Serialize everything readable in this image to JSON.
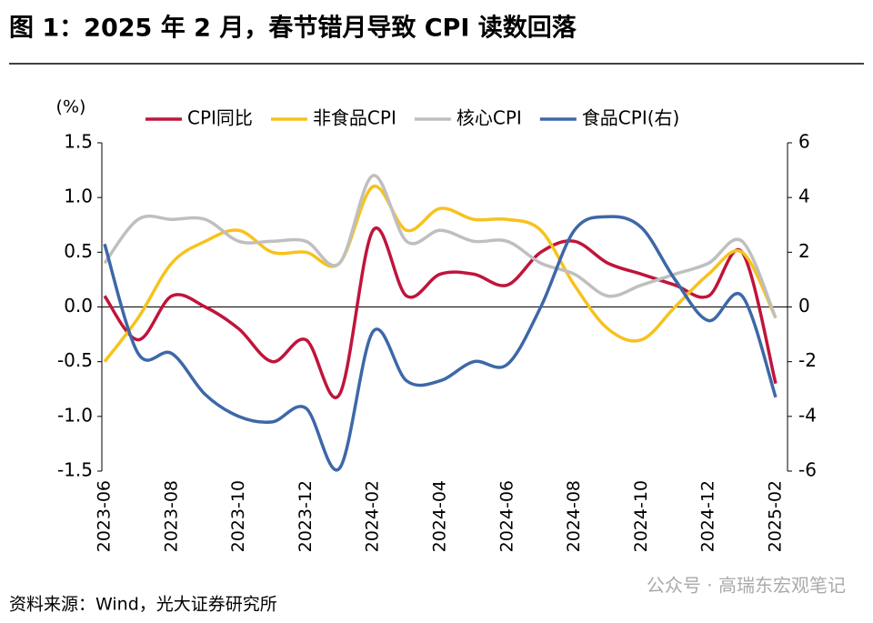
{
  "chart_data": {
    "type": "line",
    "title": "图 1：2025 年 2 月，春节错月导致 CPI 读数回落",
    "y_label": "(%)",
    "source": "资料来源：Wind，光大证券研究所",
    "watermark": "公众号 · 高瑞东宏观笔记",
    "categories": [
      "2023-06",
      null,
      "2023-08",
      null,
      "2023-10",
      null,
      "2023-12",
      null,
      "2024-02",
      null,
      "2024-04",
      null,
      "2024-06",
      null,
      "2024-08",
      null,
      "2024-10",
      null,
      "2024-12",
      null,
      "2025-02"
    ],
    "series": [
      {
        "name": "CPI同比",
        "color": "#c0143c",
        "values": [
          0.1,
          -0.3,
          0.1,
          0.0,
          -0.2,
          -0.5,
          -0.3,
          -0.8,
          0.7,
          0.1,
          0.3,
          0.3,
          0.2,
          0.5,
          0.6,
          0.4,
          0.3,
          0.2,
          0.1,
          0.5,
          -0.7
        ]
      },
      {
        "name": "非食品CPI",
        "color": "#f7c21c",
        "values": [
          -0.5,
          -0.1,
          0.4,
          0.6,
          0.7,
          0.5,
          0.5,
          0.4,
          1.1,
          0.7,
          0.9,
          0.8,
          0.8,
          0.7,
          0.2,
          -0.2,
          -0.3,
          0.0,
          0.3,
          0.5,
          -0.1
        ]
      },
      {
        "name": "核心CPI",
        "color": "#bfbfbf",
        "values": [
          0.4,
          0.8,
          0.8,
          0.8,
          0.6,
          0.6,
          0.6,
          0.4,
          1.2,
          0.6,
          0.7,
          0.6,
          0.6,
          0.4,
          0.3,
          0.1,
          0.2,
          0.3,
          0.4,
          0.6,
          -0.1
        ]
      },
      {
        "name": "食品CPI(右)",
        "color": "#3d68a8",
        "axis": "y2",
        "values": [
          2.3,
          -1.7,
          -1.7,
          -3.2,
          -4.0,
          -4.2,
          -3.7,
          -5.9,
          -0.9,
          -2.7,
          -2.7,
          -2.0,
          -2.1,
          0.0,
          2.8,
          3.3,
          2.9,
          1.0,
          -0.5,
          0.4,
          -3.3
        ]
      }
    ],
    "ylim": [
      -1.5,
      1.5
    ],
    "yticks": [
      -1.5,
      {
        "value": -1.0,
        "label": "-1.0"
      },
      -0.5,
      {
        "value": 0,
        "label": "0.0"
      },
      0.5,
      {
        "value": 1.0,
        "label": "1.0"
      },
      1.5
    ],
    "y2lim": [
      -6,
      6
    ],
    "y2ticks": [
      -6,
      -4,
      -2,
      0,
      2,
      4,
      6
    ],
    "legend": "top"
  }
}
